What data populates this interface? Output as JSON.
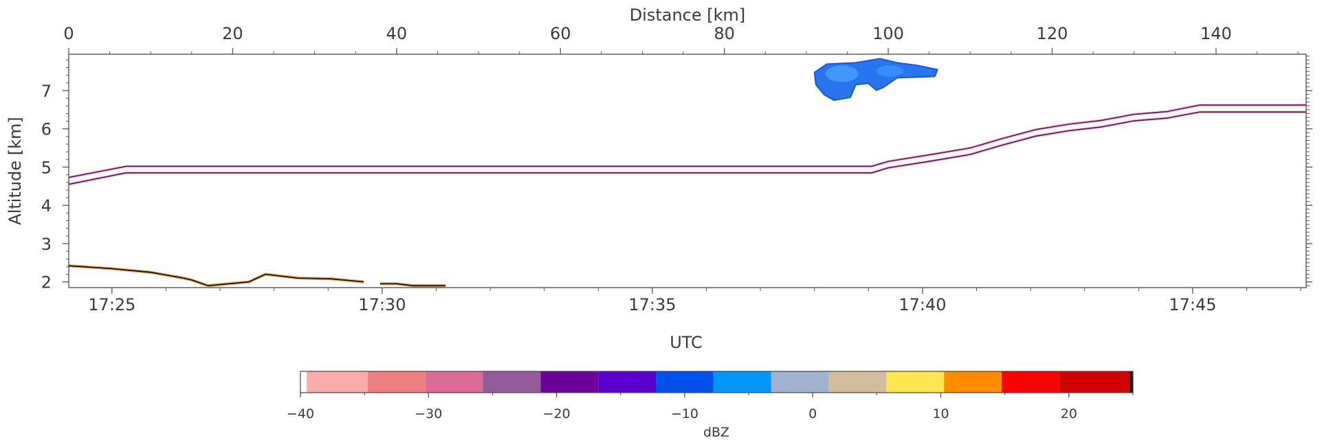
{
  "chart_data": {
    "type": "heatmap",
    "top_axis": {
      "label": "Distance [km]",
      "range": [
        0,
        151
      ],
      "ticks": [
        0,
        20,
        40,
        60,
        80,
        100,
        120,
        140
      ]
    },
    "y_axis": {
      "label": "Altitude [km]",
      "range": [
        1.85,
        7.95
      ],
      "ticks": [
        2,
        3,
        4,
        5,
        6,
        7
      ]
    },
    "x_axis": {
      "label": "UTC",
      "range_minutes": [
        1044.2,
        1067.1
      ],
      "ticks": [
        {
          "label": "17:25",
          "minutes": 1045
        },
        {
          "label": "17:30",
          "minutes": 1050
        },
        {
          "label": "17:35",
          "minutes": 1055
        },
        {
          "label": "17:40",
          "minutes": 1060
        },
        {
          "label": "17:45",
          "minutes": 1065
        }
      ]
    },
    "surface_echo": {
      "upper_line_km": [
        [
          0,
          4.73
        ],
        [
          7,
          5.02
        ],
        [
          98,
          5.02
        ],
        [
          100,
          5.15
        ],
        [
          105,
          5.32
        ],
        [
          110,
          5.5
        ],
        [
          114,
          5.75
        ],
        [
          118,
          5.98
        ],
        [
          122,
          6.12
        ],
        [
          126,
          6.22
        ],
        [
          130,
          6.38
        ],
        [
          134,
          6.45
        ],
        [
          138,
          6.62
        ],
        [
          151,
          6.62
        ]
      ],
      "lower_line_km": [
        [
          0,
          4.55
        ],
        [
          7,
          4.85
        ],
        [
          98,
          4.85
        ],
        [
          100,
          4.98
        ],
        [
          105,
          5.15
        ],
        [
          110,
          5.33
        ],
        [
          114,
          5.58
        ],
        [
          118,
          5.81
        ],
        [
          122,
          5.95
        ],
        [
          126,
          6.05
        ],
        [
          130,
          6.21
        ],
        [
          134,
          6.28
        ],
        [
          138,
          6.44
        ],
        [
          151,
          6.44
        ]
      ],
      "ground_trace_km": [
        [
          0,
          2.42
        ],
        [
          5,
          2.35
        ],
        [
          10,
          2.25
        ],
        [
          14,
          2.1
        ],
        [
          15,
          2.05
        ],
        [
          17,
          1.9
        ],
        [
          22,
          2.0
        ],
        [
          24,
          2.2
        ],
        [
          28,
          2.1
        ],
        [
          32,
          2.08
        ],
        [
          36,
          2.0
        ],
        [
          38,
          1.95
        ],
        [
          40,
          1.95
        ],
        [
          42,
          1.9
        ],
        [
          46,
          1.9
        ]
      ]
    },
    "cloud_echo": {
      "distance_km": [
        91,
        106
      ],
      "altitude_km": [
        6.75,
        7.8
      ],
      "dbz_approx": -10
    },
    "colorbar": {
      "label": "dBZ",
      "range": [
        -40,
        25
      ],
      "tick_values": [
        -40,
        -30,
        -20,
        -10,
        0,
        10,
        20
      ],
      "tick_labels": [
        "−40",
        "−30",
        "−20",
        "−10",
        "0",
        "10",
        "20"
      ],
      "bins": [
        {
          "from": -40,
          "to": -39.5,
          "color": "#ffffff"
        },
        {
          "from": -39.5,
          "to": -34.75,
          "color": "#fdaaaa"
        },
        {
          "from": -34.75,
          "to": -30.25,
          "color": "#f08080"
        },
        {
          "from": -30.25,
          "to": -25.75,
          "color": "#dc6a96"
        },
        {
          "from": -25.75,
          "to": -21.25,
          "color": "#945a9a"
        },
        {
          "from": -21.25,
          "to": -16.75,
          "color": "#6d0099"
        },
        {
          "from": -16.75,
          "to": -12.25,
          "color": "#5a00d2"
        },
        {
          "from": -12.25,
          "to": -7.75,
          "color": "#0050ec"
        },
        {
          "from": -7.75,
          "to": -3.25,
          "color": "#0096fa"
        },
        {
          "from": -3.25,
          "to": 1.25,
          "color": "#9fb2d0"
        },
        {
          "from": 1.25,
          "to": 5.75,
          "color": "#d2bc9c"
        },
        {
          "from": 5.75,
          "to": 10.25,
          "color": "#ffe550"
        },
        {
          "from": 10.25,
          "to": 14.75,
          "color": "#ff8c00"
        },
        {
          "from": 14.75,
          "to": 19.25,
          "color": "#ff0000"
        },
        {
          "from": 19.25,
          "to": 24.75,
          "color": "#d20000"
        },
        {
          "from": 24.75,
          "to": 25,
          "color": "#000000"
        }
      ]
    }
  }
}
